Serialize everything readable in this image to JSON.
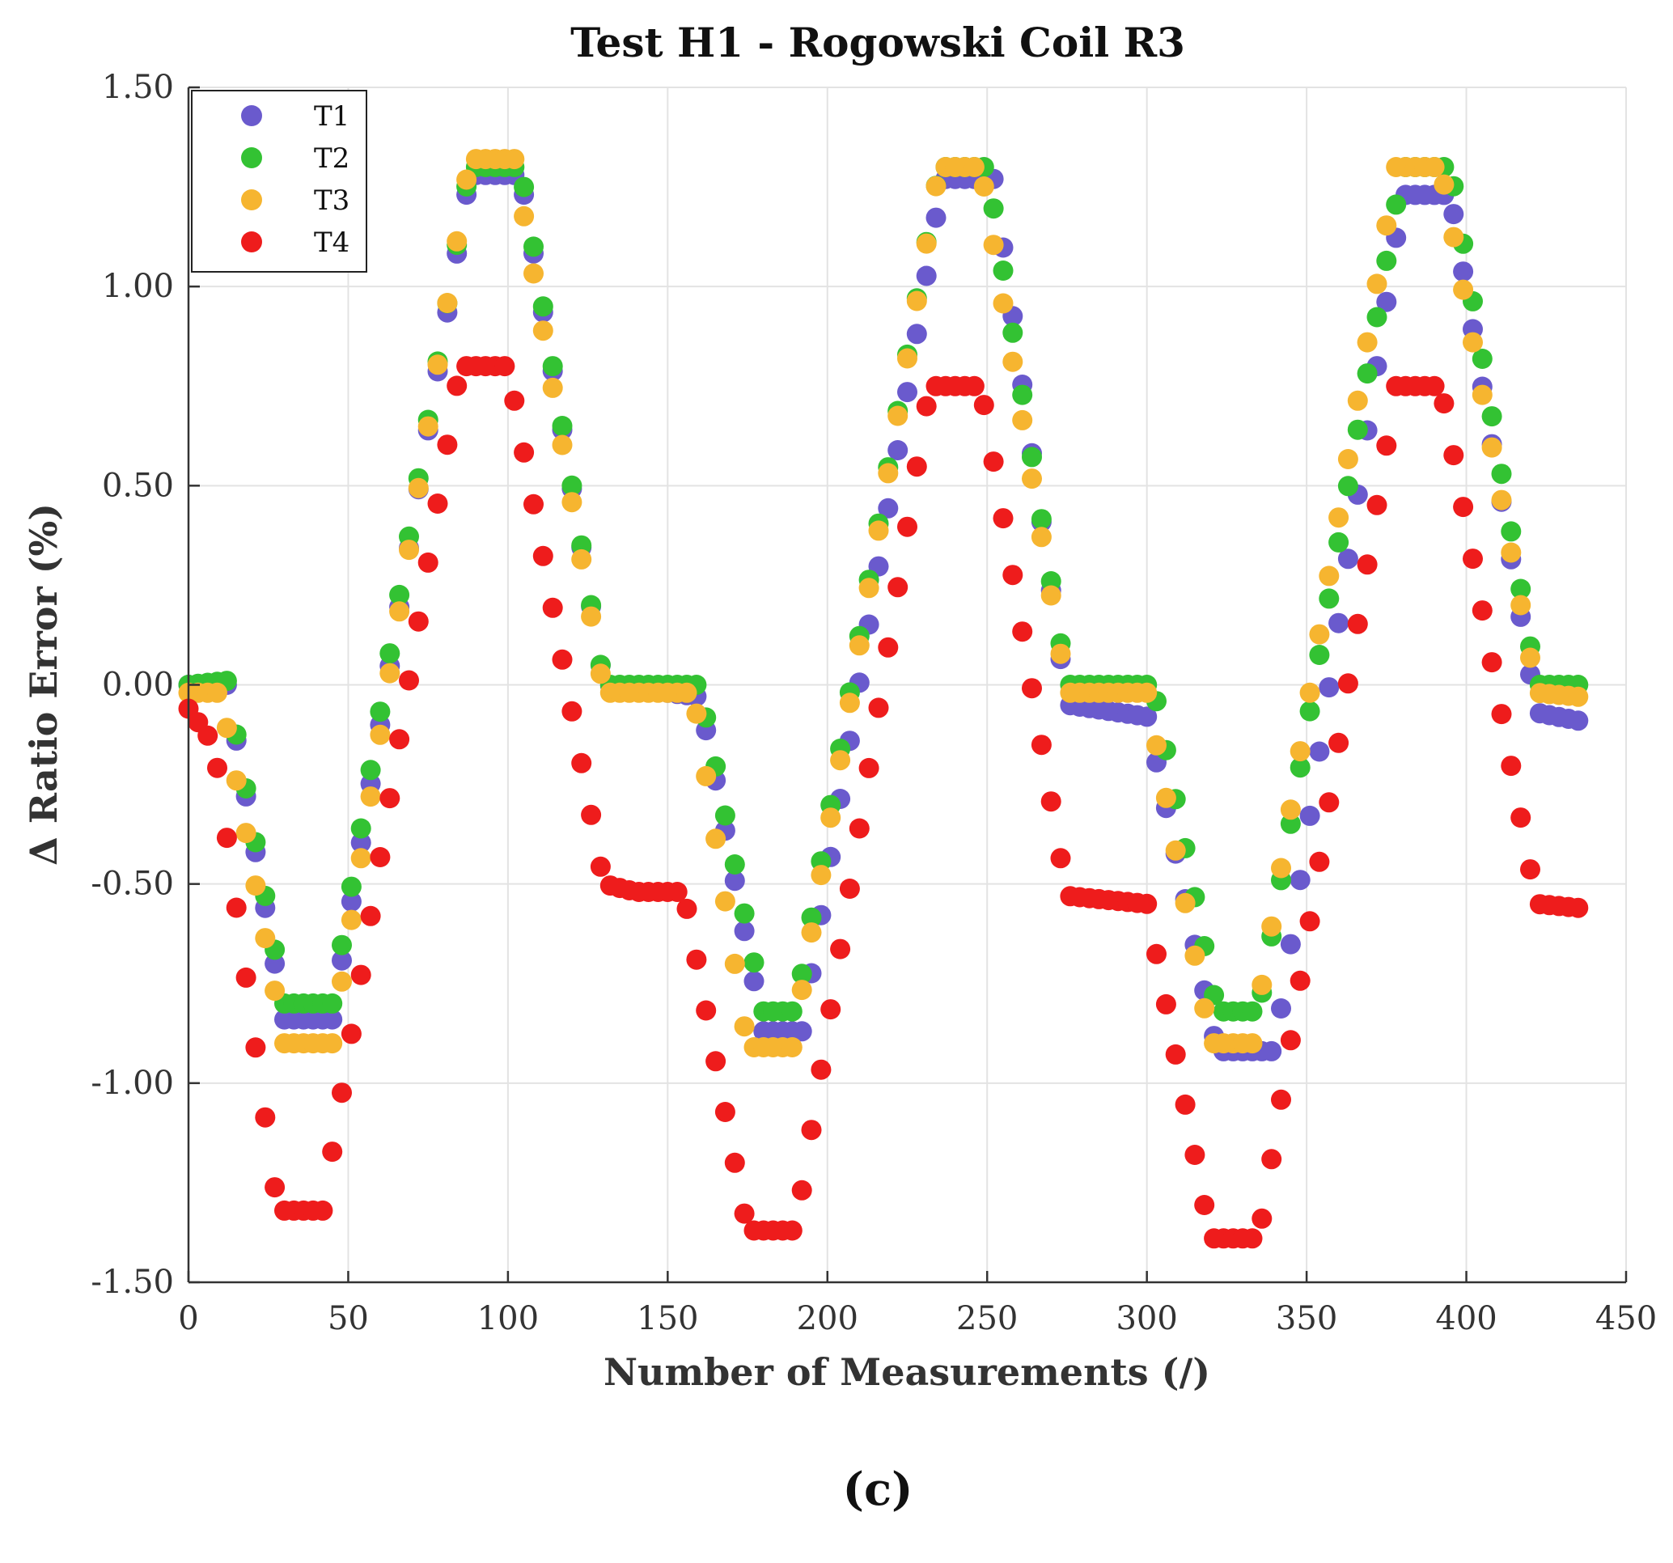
{
  "chart_data": {
    "type": "scatter",
    "title": "Test H1 - Rogowski Coil R3",
    "xlabel": "Number of Measurements (/)",
    "ylabel": "Δ Ratio Error (%)",
    "xlim": [
      0,
      450
    ],
    "ylim": [
      -1.5,
      1.5
    ],
    "xticks": [
      0,
      50,
      100,
      150,
      200,
      250,
      300,
      350,
      400,
      450
    ],
    "xtick_labels": [
      "0",
      "50",
      "100",
      "150",
      "200",
      "250",
      "300",
      "350",
      "400",
      "450"
    ],
    "yticks": [
      -1.5,
      -1.0,
      -0.5,
      0.0,
      0.5,
      1.0,
      1.5
    ],
    "ytick_labels": [
      "-1.50",
      "-1.00",
      "-0.50",
      "0.00",
      "0.50",
      "1.00",
      "1.50"
    ],
    "grid": true,
    "legend_position": "top-left",
    "panel_label": "(c)",
    "series": [
      {
        "name": "T1",
        "color": "#6a5acd",
        "step": 3,
        "keypoints": [
          [
            0,
            0
          ],
          [
            12,
            0
          ],
          [
            30,
            -0.84
          ],
          [
            45,
            -0.84
          ],
          [
            88,
            1.28
          ],
          [
            104,
            1.28
          ],
          [
            130,
            0
          ],
          [
            160,
            -0.03
          ],
          [
            180,
            -0.87
          ],
          [
            192,
            -0.87
          ],
          [
            236,
            1.27
          ],
          [
            252,
            1.27
          ],
          [
            275,
            -0.05
          ],
          [
            300,
            -0.08
          ],
          [
            322,
            -0.92
          ],
          [
            340,
            -0.92
          ],
          [
            380,
            1.23
          ],
          [
            395,
            1.23
          ],
          [
            422,
            -0.07
          ],
          [
            435,
            -0.09
          ]
        ]
      },
      {
        "name": "T2",
        "color": "#33c233",
        "step": 3,
        "keypoints": [
          [
            0,
            0
          ],
          [
            12,
            0.01
          ],
          [
            30,
            -0.8
          ],
          [
            45,
            -0.8
          ],
          [
            88,
            1.3
          ],
          [
            104,
            1.3
          ],
          [
            130,
            0
          ],
          [
            160,
            0
          ],
          [
            180,
            -0.82
          ],
          [
            190,
            -0.82
          ],
          [
            235,
            1.3
          ],
          [
            250,
            1.3
          ],
          [
            275,
            0
          ],
          [
            302,
            0
          ],
          [
            322,
            -0.82
          ],
          [
            335,
            -0.82
          ],
          [
            380,
            1.3
          ],
          [
            395,
            1.3
          ],
          [
            422,
            0
          ],
          [
            435,
            0
          ]
        ]
      },
      {
        "name": "T3",
        "color": "#f6b530",
        "step": 3,
        "keypoints": [
          [
            0,
            -0.02
          ],
          [
            10,
            -0.02
          ],
          [
            30,
            -0.9
          ],
          [
            45,
            -0.9
          ],
          [
            88,
            1.32
          ],
          [
            102,
            1.32
          ],
          [
            130,
            -0.02
          ],
          [
            158,
            -0.02
          ],
          [
            175,
            -0.91
          ],
          [
            189,
            -0.91
          ],
          [
            235,
            1.3
          ],
          [
            248,
            1.3
          ],
          [
            275,
            -0.02
          ],
          [
            300,
            -0.02
          ],
          [
            320,
            -0.9
          ],
          [
            333,
            -0.9
          ],
          [
            378,
            1.3
          ],
          [
            392,
            1.3
          ],
          [
            422,
            -0.02
          ],
          [
            435,
            -0.03
          ]
        ]
      },
      {
        "name": "T4",
        "color": "#ee1c1c",
        "step": 3,
        "keypoints": [
          [
            0,
            -0.06
          ],
          [
            8,
            -0.15
          ],
          [
            28,
            -1.32
          ],
          [
            42,
            -1.32
          ],
          [
            85,
            0.8
          ],
          [
            100,
            0.8
          ],
          [
            130,
            -0.5
          ],
          [
            140,
            -0.52
          ],
          [
            155,
            -0.52
          ],
          [
            175,
            -1.37
          ],
          [
            190,
            -1.37
          ],
          [
            232,
            0.75
          ],
          [
            248,
            0.75
          ],
          [
            275,
            -0.53
          ],
          [
            300,
            -0.55
          ],
          [
            320,
            -1.39
          ],
          [
            335,
            -1.39
          ],
          [
            378,
            0.75
          ],
          [
            392,
            0.75
          ],
          [
            422,
            -0.55
          ],
          [
            435,
            -0.56
          ]
        ]
      }
    ]
  }
}
